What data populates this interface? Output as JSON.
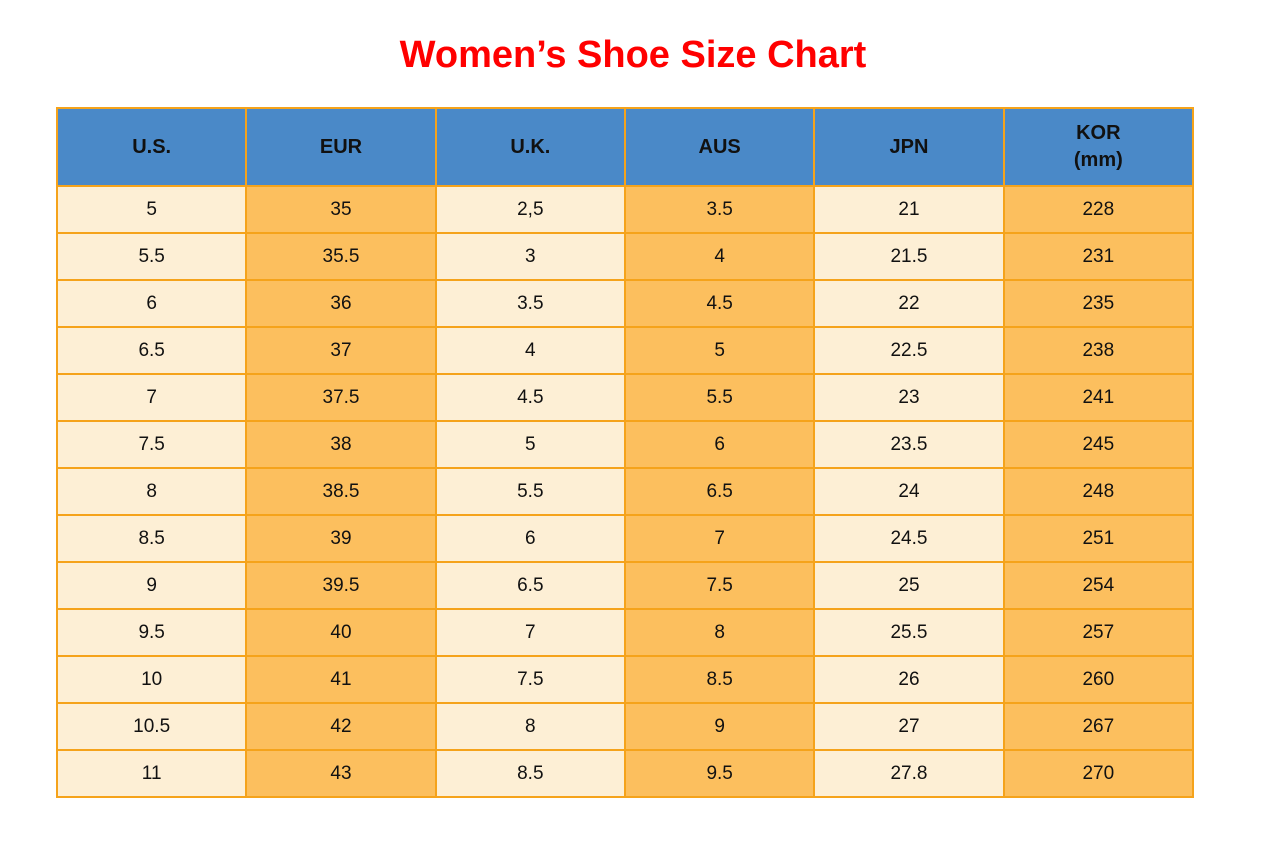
{
  "page": {
    "title": "Women’s Shoe Size Chart"
  },
  "colors": {
    "title_red": "#ff0000",
    "header_blue": "#4a89c8",
    "row_cream": "#fdefd5",
    "row_orange": "#fcbf5e",
    "border_orange": "#f5a31b"
  },
  "chart_data": {
    "type": "table",
    "title": "Women’s Shoe Size Chart",
    "columns": [
      "U.S.",
      "EUR",
      "U.K.",
      "AUS",
      "JPN",
      "KOR (mm)"
    ],
    "header": [
      {
        "key": "us",
        "label": "U.S."
      },
      {
        "key": "eur",
        "label": "EUR"
      },
      {
        "key": "uk",
        "label": "U.K."
      },
      {
        "key": "aus",
        "label": "AUS"
      },
      {
        "key": "jpn",
        "label": "JPN"
      },
      {
        "key": "kor",
        "label": "KOR",
        "sub": "(mm)"
      }
    ],
    "rows": [
      [
        "5",
        "35",
        "2,5",
        "3.5",
        "21",
        "228"
      ],
      [
        "5.5",
        "35.5",
        "3",
        "4",
        "21.5",
        "231"
      ],
      [
        "6",
        "36",
        "3.5",
        "4.5",
        "22",
        "235"
      ],
      [
        "6.5",
        "37",
        "4",
        "5",
        "22.5",
        "238"
      ],
      [
        "7",
        "37.5",
        "4.5",
        "5.5",
        "23",
        "241"
      ],
      [
        "7.5",
        "38",
        "5",
        "6",
        "23.5",
        "245"
      ],
      [
        "8",
        "38.5",
        "5.5",
        "6.5",
        "24",
        "248"
      ],
      [
        "8.5",
        "39",
        "6",
        "7",
        "24.5",
        "251"
      ],
      [
        "9",
        "39.5",
        "6.5",
        "7.5",
        "25",
        "254"
      ],
      [
        "9.5",
        "40",
        "7",
        "8",
        "25.5",
        "257"
      ],
      [
        "10",
        "41",
        "7.5",
        "8.5",
        "26",
        "260"
      ],
      [
        "10.5",
        "42",
        "8",
        "9",
        "27",
        "267"
      ],
      [
        "11",
        "43",
        "8.5",
        "9.5",
        "27.8",
        "270"
      ]
    ]
  }
}
